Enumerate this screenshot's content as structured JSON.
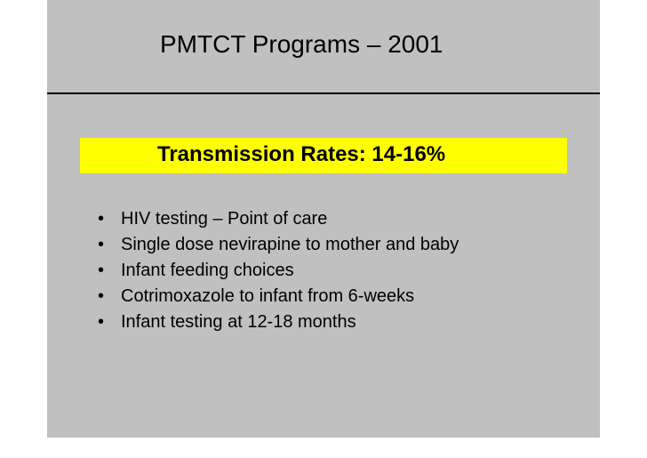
{
  "slide": {
    "title": "PMTCT Programs – 2001",
    "callout": "Transmission Rates: 14-16%",
    "callout_color": "#ffff00",
    "background_color": "#c0c0c0",
    "bullet_symbol": "•",
    "bullets": [
      "HIV testing – Point of care",
      "Single dose nevirapine to mother and baby",
      "Infant feeding choices",
      "Cotrimoxazole to infant from 6-weeks",
      "Infant testing at 12-18 months"
    ]
  }
}
